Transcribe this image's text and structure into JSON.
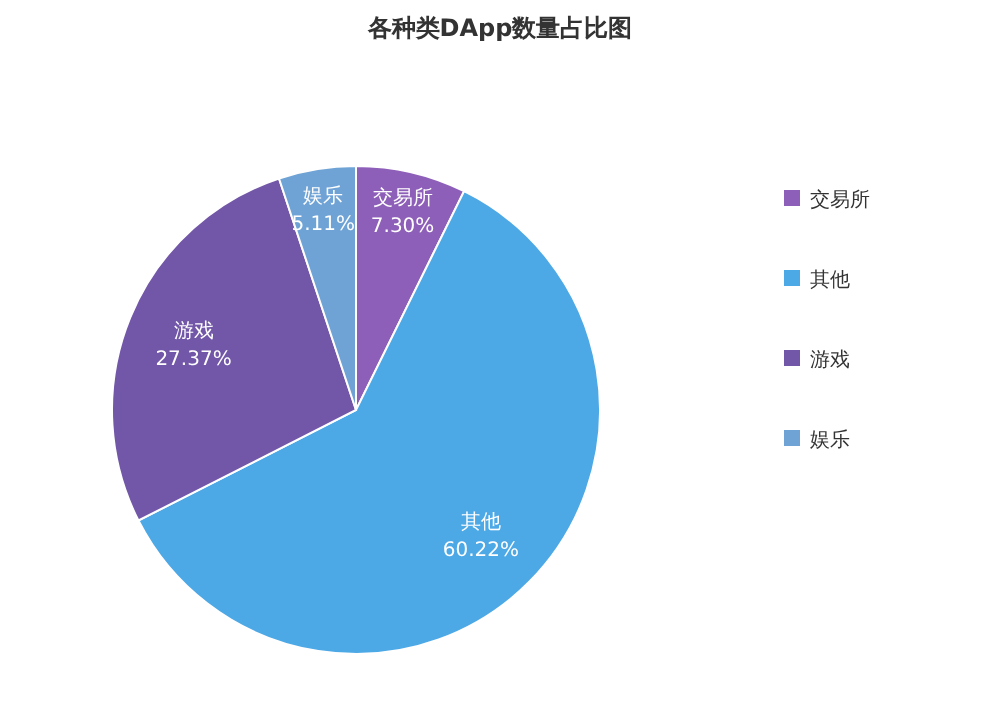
{
  "chart_data": {
    "type": "pie",
    "title": "各种类DApp数量占比图",
    "categories": [
      "交易所",
      "其他",
      "游戏",
      "娱乐"
    ],
    "values": [
      7.3,
      60.22,
      27.37,
      5.11
    ],
    "colors": [
      "#8e5fb8",
      "#4da8e6",
      "#7256a8",
      "#6fa3d6"
    ],
    "value_labels": [
      "7.30%",
      "60.22%",
      "27.37%",
      "5.11%"
    ],
    "legend": "right"
  }
}
